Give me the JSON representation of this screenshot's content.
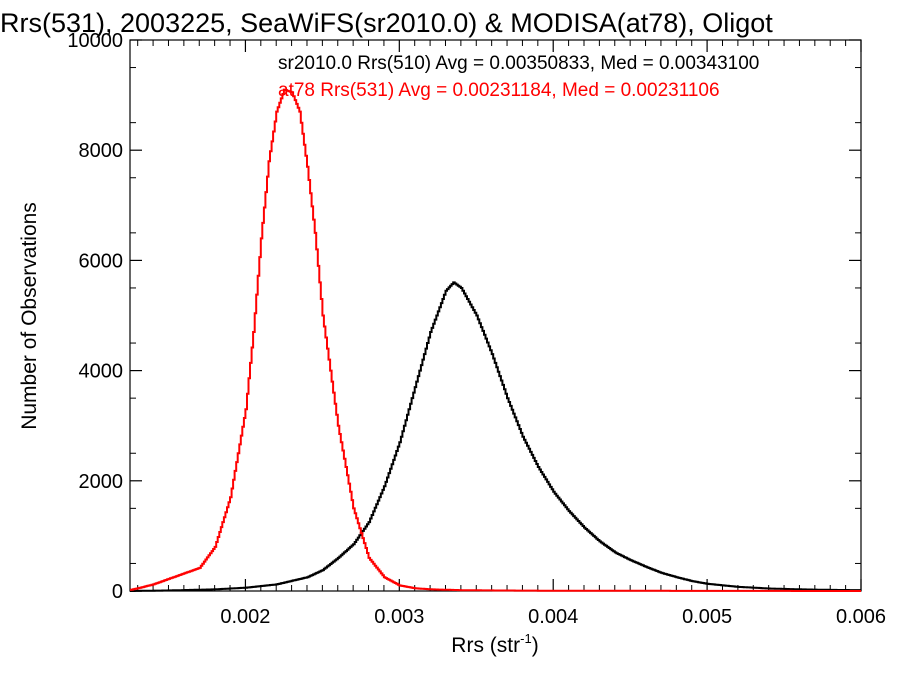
{
  "chart_data": {
    "type": "line",
    "title": "Rrs(531), 2003225, SeaWiFS(sr2010.0) & MODISA(at78), Oligot",
    "xlabel_main": "Rrs (str",
    "xlabel_sup": "-1",
    "xlabel_close": ")",
    "ylabel": "Number of Observations",
    "xlim": [
      0.00125,
      0.006
    ],
    "ylim": [
      0,
      10000
    ],
    "xticks": [
      {
        "v": 0.002,
        "label": "0.002"
      },
      {
        "v": 0.003,
        "label": "0.003"
      },
      {
        "v": 0.004,
        "label": "0.004"
      },
      {
        "v": 0.005,
        "label": "0.005"
      },
      {
        "v": 0.006,
        "label": "0.006"
      }
    ],
    "yticks": [
      {
        "v": 0,
        "label": "0"
      },
      {
        "v": 2000,
        "label": "2000"
      },
      {
        "v": 4000,
        "label": "4000"
      },
      {
        "v": 6000,
        "label": "6000"
      },
      {
        "v": 8000,
        "label": "8000"
      },
      {
        "v": 10000,
        "label": "10000"
      }
    ],
    "annotations": [
      {
        "text": "sr2010.0 Rrs(510) Avg = 0.00350833, Med = 0.00343100",
        "color": "#000000"
      },
      {
        "text": "at78 Rrs(531) Avg = 0.00231184, Med = 0.00231106",
        "color": "#ff0000"
      }
    ],
    "series": [
      {
        "color": "#000000",
        "x": [
          0.00125,
          0.0015,
          0.0018,
          0.002,
          0.0022,
          0.0024,
          0.0025,
          0.0026,
          0.0027,
          0.0028,
          0.0029,
          0.003,
          0.0031,
          0.0032,
          0.0033,
          0.00335,
          0.0034,
          0.0035,
          0.0036,
          0.0037,
          0.0038,
          0.0039,
          0.004,
          0.0041,
          0.0042,
          0.0043,
          0.0044,
          0.0045,
          0.0046,
          0.0047,
          0.0048,
          0.0049,
          0.005,
          0.0052,
          0.0054,
          0.0056,
          0.0058,
          0.006
        ],
        "y": [
          0,
          10,
          30,
          60,
          120,
          250,
          380,
          600,
          850,
          1250,
          1900,
          2700,
          3700,
          4700,
          5450,
          5600,
          5500,
          5000,
          4300,
          3500,
          2800,
          2250,
          1800,
          1450,
          1150,
          900,
          700,
          560,
          440,
          330,
          250,
          180,
          130,
          75,
          45,
          30,
          20,
          15
        ]
      },
      {
        "color": "#ff0000",
        "x": [
          0.00125,
          0.0013,
          0.0014,
          0.0015,
          0.0016,
          0.0017,
          0.0018,
          0.0019,
          0.002,
          0.00205,
          0.0021,
          0.00215,
          0.0022,
          0.00225,
          0.0023,
          0.00235,
          0.0024,
          0.00245,
          0.0025,
          0.0026,
          0.0027,
          0.0028,
          0.0029,
          0.003,
          0.0031,
          0.0032,
          0.0034,
          0.0036,
          0.004,
          0.005,
          0.006
        ],
        "y": [
          20,
          50,
          120,
          220,
          320,
          420,
          800,
          1700,
          3300,
          4700,
          6400,
          7800,
          8700,
          9100,
          9050,
          8700,
          7700,
          6500,
          5000,
          3000,
          1500,
          600,
          250,
          100,
          50,
          30,
          15,
          10,
          5,
          2,
          0
        ]
      }
    ]
  }
}
